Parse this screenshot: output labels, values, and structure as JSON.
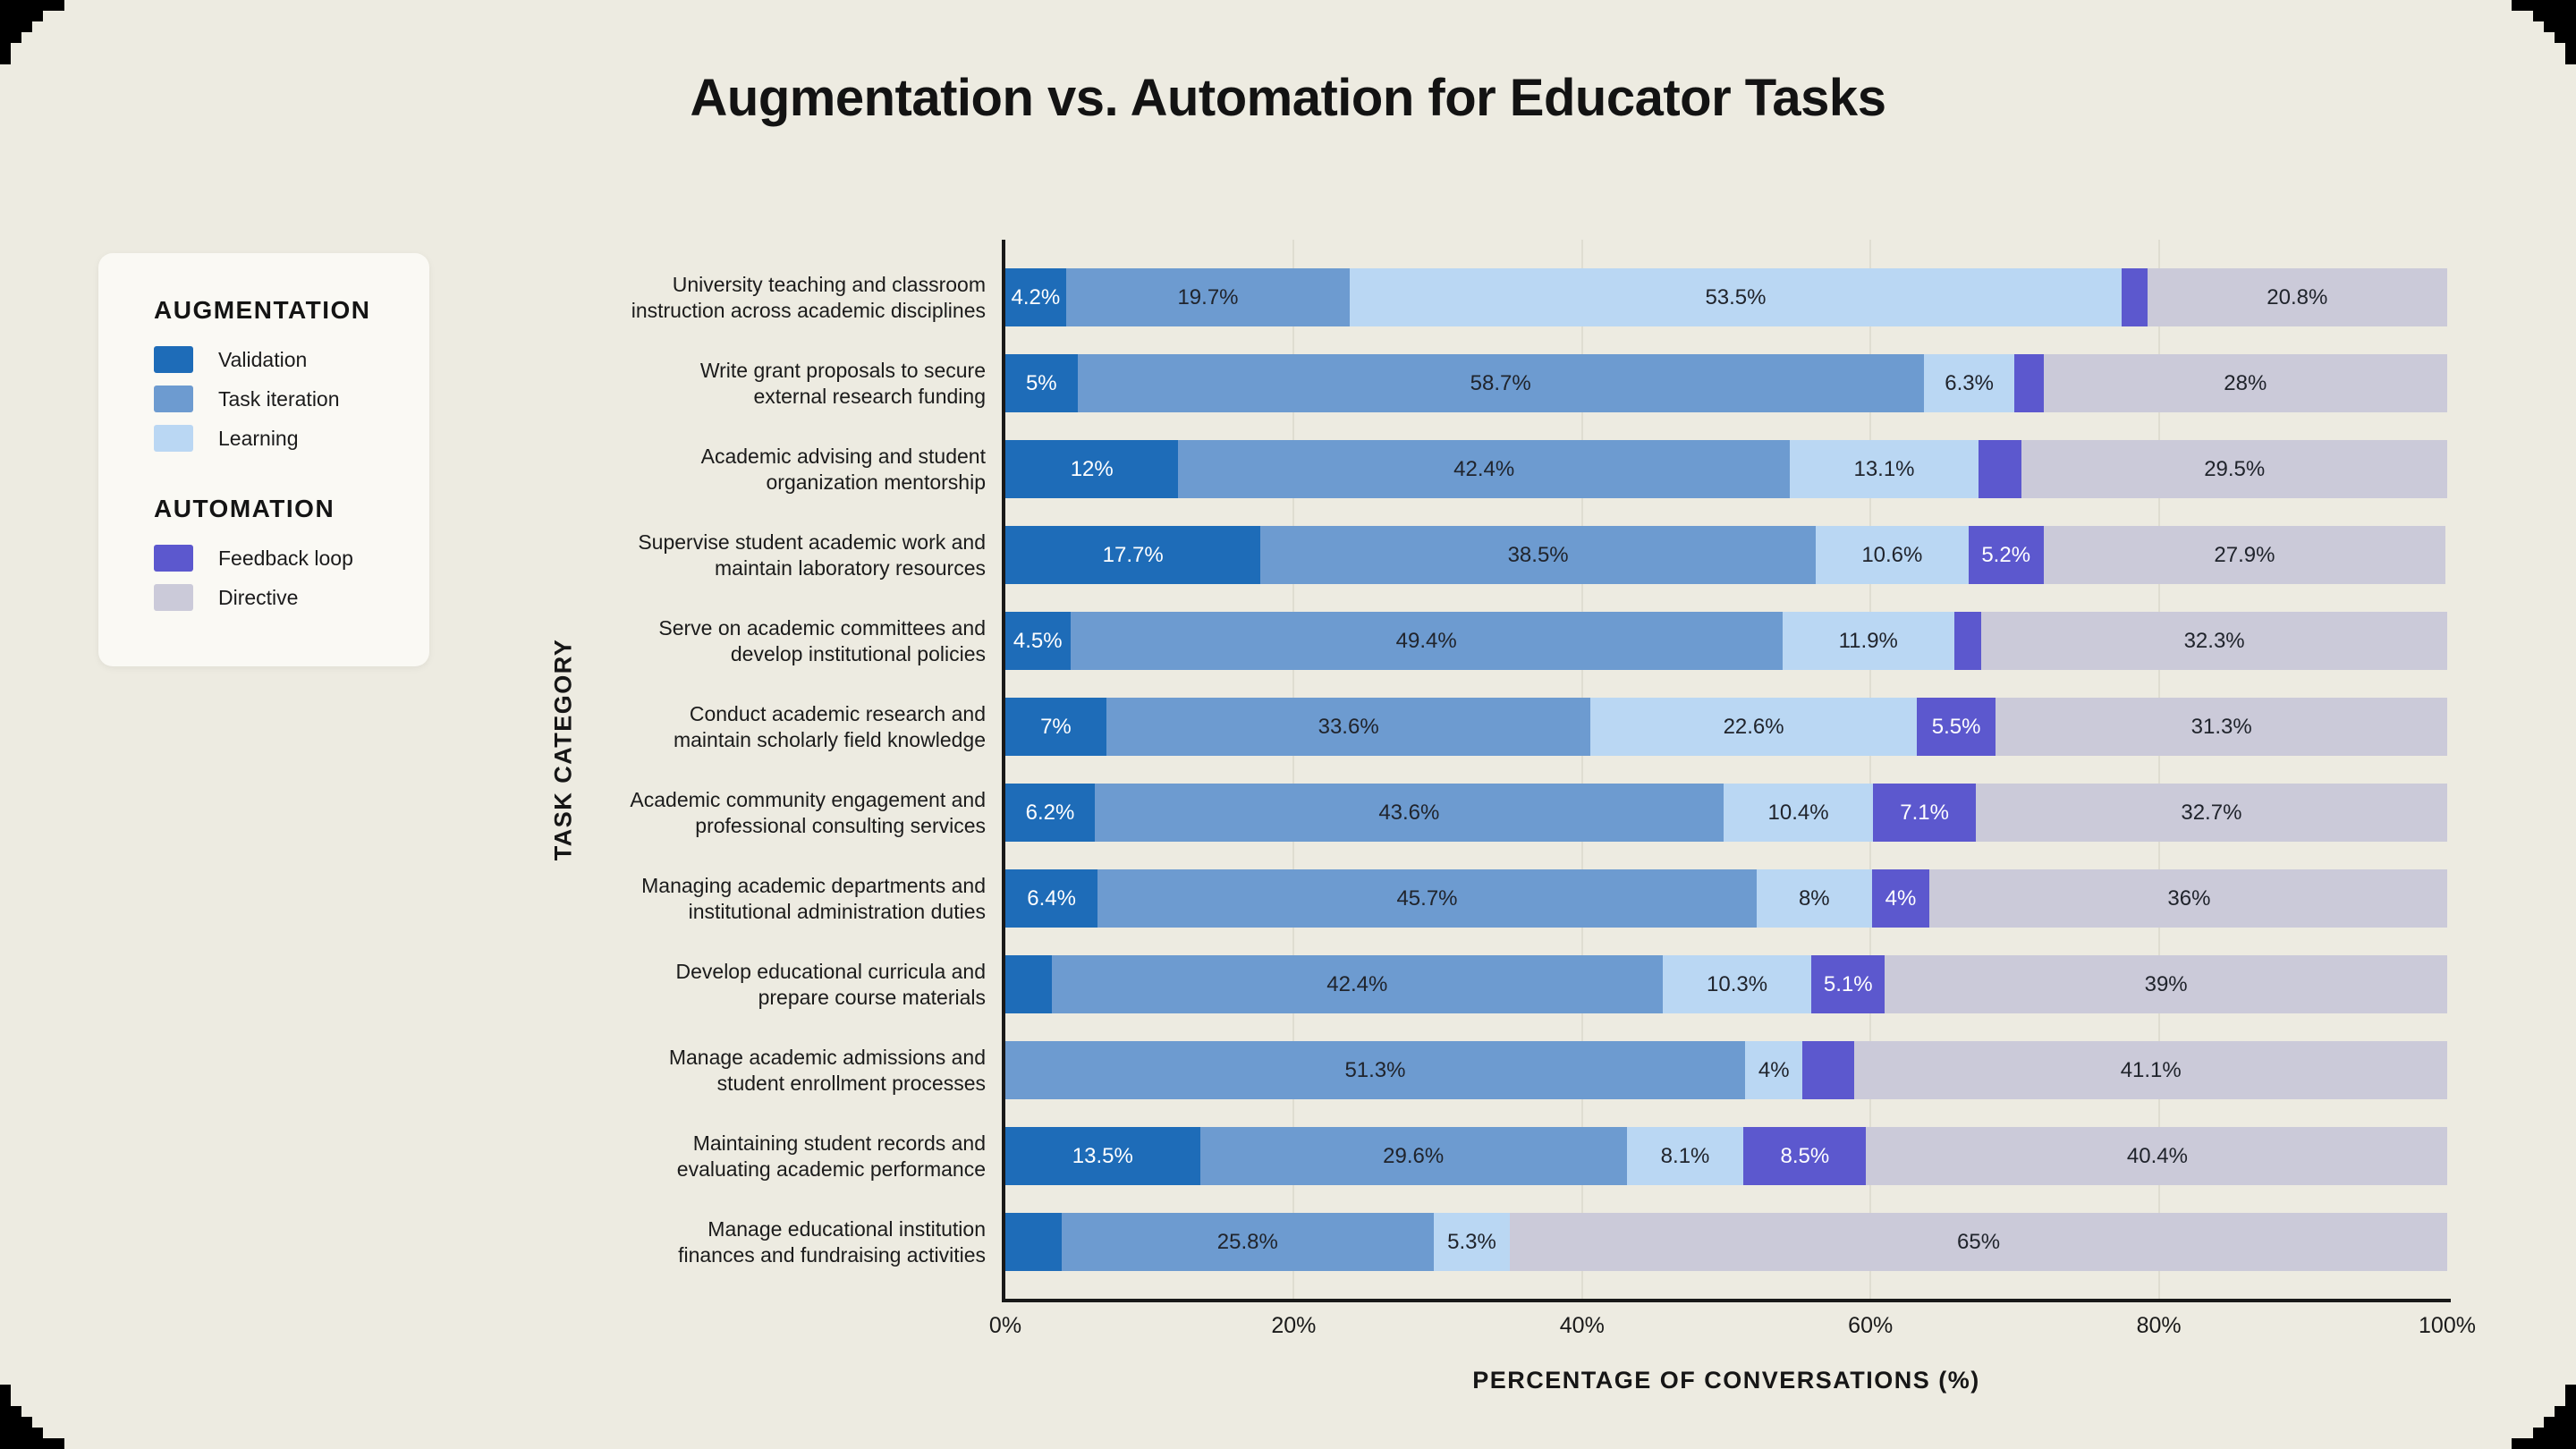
{
  "page": {
    "outer_background": "#000000",
    "surface": "#EDEBE1",
    "card": "#FAF9F4"
  },
  "title": "Augmentation vs. Automation for Educator Tasks",
  "legend": {
    "groups": [
      {
        "heading": "AUGMENTATION",
        "items": [
          {
            "label": "Validation",
            "color": "#1E6CB8"
          },
          {
            "label": "Task iteration",
            "color": "#6D9BD0"
          },
          {
            "label": "Learning",
            "color": "#BAD7F3"
          }
        ]
      },
      {
        "heading": "AUTOMATION",
        "items": [
          {
            "label": "Feedback loop",
            "color": "#5C58CE"
          },
          {
            "label": "Directive",
            "color": "#CBCAD9"
          }
        ]
      }
    ]
  },
  "chart_data": {
    "type": "bar",
    "orientation": "horizontal",
    "stacked": true,
    "title": "Augmentation vs. Automation for Educator Tasks",
    "xlabel": "PERCENTAGE OF CONVERSATIONS (%)",
    "ylabel": "TASK CATEGORY",
    "xlim": [
      0,
      100
    ],
    "grid": "vertical",
    "legend_position": "left",
    "series_names": [
      "Validation",
      "Task iteration",
      "Learning",
      "Feedback loop",
      "Directive"
    ],
    "series_colors": [
      "#1E6CB8",
      "#6D9BD0",
      "#BAD7F3",
      "#5C58CE",
      "#CBCAD9"
    ],
    "label_text_colors": [
      "#FFFFFF",
      "#20242C",
      "#20242C",
      "#FFFFFF",
      "#20242C"
    ],
    "gridlines_percent": [
      20,
      40,
      60,
      80
    ],
    "ticks_percent": [
      0,
      20,
      40,
      60,
      80,
      100
    ],
    "x_tick_labels": [
      "0%",
      "20%",
      "40%",
      "60%",
      "80%",
      "100%"
    ],
    "rows": [
      {
        "category": "University teaching and classroom\ninstruction across academic disciplines",
        "values": [
          4.2,
          19.7,
          53.5,
          1.8,
          20.8
        ],
        "labels": [
          "4.2%",
          "19.7%",
          "53.5%",
          "",
          "20.8%"
        ]
      },
      {
        "category": "Write grant proposals to secure\nexternal research funding",
        "values": [
          5,
          58.7,
          6.3,
          2,
          28
        ],
        "labels": [
          "5%",
          "58.7%",
          "6.3%",
          "",
          "28%"
        ]
      },
      {
        "category": "Academic advising and student\norganization mentorship",
        "values": [
          12,
          42.4,
          13.1,
          3,
          29.5
        ],
        "labels": [
          "12%",
          "42.4%",
          "13.1%",
          "",
          "29.5%"
        ]
      },
      {
        "category": "Supervise student academic work and\nmaintain laboratory resources",
        "values": [
          17.7,
          38.5,
          10.6,
          5.2,
          27.9
        ],
        "labels": [
          "17.7%",
          "38.5%",
          "10.6%",
          "5.2%",
          "27.9%"
        ]
      },
      {
        "category": "Serve on academic committees and\ndevelop institutional policies",
        "values": [
          4.5,
          49.4,
          11.9,
          1.9,
          32.3
        ],
        "labels": [
          "4.5%",
          "49.4%",
          "11.9%",
          "",
          "32.3%"
        ]
      },
      {
        "category": "Conduct academic research and\nmaintain scholarly field knowledge",
        "values": [
          7,
          33.6,
          22.6,
          5.5,
          31.3
        ],
        "labels": [
          "7%",
          "33.6%",
          "22.6%",
          "5.5%",
          "31.3%"
        ]
      },
      {
        "category": "Academic community engagement and\nprofessional consulting services",
        "values": [
          6.2,
          43.6,
          10.4,
          7.1,
          32.7
        ],
        "labels": [
          "6.2%",
          "43.6%",
          "10.4%",
          "7.1%",
          "32.7%"
        ]
      },
      {
        "category": "Managing academic departments and\ninstitutional administration duties",
        "values": [
          6.4,
          45.7,
          8,
          4,
          36
        ],
        "labels": [
          "6.4%",
          "45.7%",
          "8%",
          "4%",
          "36%"
        ]
      },
      {
        "category": "Develop educational curricula and\nprepare course materials",
        "values": [
          3.2,
          42.4,
          10.3,
          5.1,
          39
        ],
        "labels": [
          "",
          "42.4%",
          "10.3%",
          "5.1%",
          "39%"
        ]
      },
      {
        "category": "Manage academic admissions and\nstudent enrollment processes",
        "values": [
          0,
          51.3,
          4,
          3.6,
          41.1
        ],
        "labels": [
          "",
          "51.3%",
          "4%",
          "",
          "41.1%"
        ]
      },
      {
        "category": "Maintaining student records and\nevaluating academic performance",
        "values": [
          13.5,
          29.6,
          8.1,
          8.5,
          40.4
        ],
        "labels": [
          "13.5%",
          "29.6%",
          "8.1%",
          "8.5%",
          "40.4%"
        ]
      },
      {
        "category": "Manage educational institution\nfinances and fundraising activities",
        "values": [
          3.9,
          25.8,
          5.3,
          0,
          65
        ],
        "labels": [
          "",
          "25.8%",
          "5.3%",
          "",
          "65%"
        ]
      }
    ]
  }
}
